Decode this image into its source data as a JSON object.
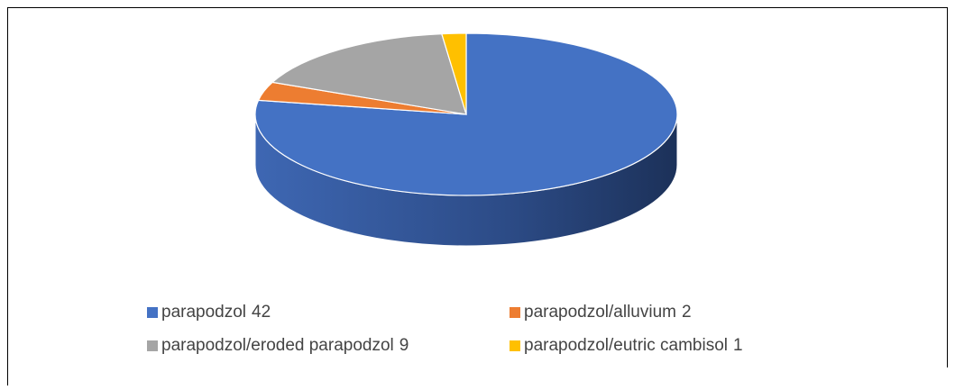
{
  "chart_data": {
    "type": "pie",
    "categories": [
      "parapodzol",
      "parapodzol/alluvium",
      "parapodzol/eroded parapodzol",
      "parapodzol/eutric cambisol"
    ],
    "values": [
      42,
      2,
      9,
      1
    ],
    "colors": [
      "#4472c4",
      "#ed7d31",
      "#a5a5a5",
      "#ffc000"
    ],
    "legend": "bottom"
  }
}
